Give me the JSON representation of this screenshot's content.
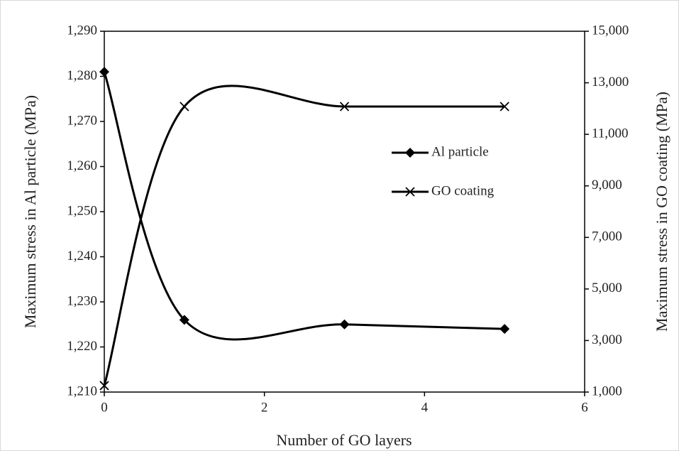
{
  "chart_data": {
    "type": "line",
    "x_label": "Number of GO layers",
    "y_label": "Maximum stress in Al particle (MPa)",
    "y2_label": "Maximum stress in GO coating (MPa)",
    "x": [
      0,
      1,
      3,
      5
    ],
    "series": [
      {
        "name": "Al particle",
        "color": "#000000",
        "marker": "diamond",
        "values": [
          1281,
          1226,
          1225,
          1224
        ]
      },
      {
        "name": "GO coating",
        "color": "#000000",
        "marker": "x",
        "axis": "y2",
        "values": [
          1250,
          12080,
          12080,
          12080
        ]
      }
    ],
    "smooth": true,
    "xlim": [
      0,
      6
    ],
    "xticks": [
      0,
      2,
      4,
      6
    ],
    "ylim": [
      1210,
      1290
    ],
    "yticks": [
      {
        "value": 1210,
        "label": "1,210"
      },
      {
        "value": 1220,
        "label": "1,220"
      },
      {
        "value": 1230,
        "label": "1,230"
      },
      {
        "value": 1240,
        "label": "1,240"
      },
      {
        "value": 1250,
        "label": "1,250"
      },
      {
        "value": 1260,
        "label": "1,260"
      },
      {
        "value": 1270,
        "label": "1,270"
      },
      {
        "value": 1280,
        "label": "1,280"
      },
      {
        "value": 1290,
        "label": "1,290"
      }
    ],
    "y2lim": [
      1000,
      15000
    ],
    "y2ticks": [
      {
        "value": 1000,
        "label": "1,000"
      },
      {
        "value": 3000,
        "label": "3,000"
      },
      {
        "value": 5000,
        "label": "5,000"
      },
      {
        "value": 7000,
        "label": "7,000"
      },
      {
        "value": 9000,
        "label": "9,000"
      },
      {
        "value": 11000,
        "label": "11,000"
      },
      {
        "value": 13000,
        "label": "13,000"
      },
      {
        "value": 15000,
        "label": "15,000"
      }
    ],
    "grid": false
  }
}
